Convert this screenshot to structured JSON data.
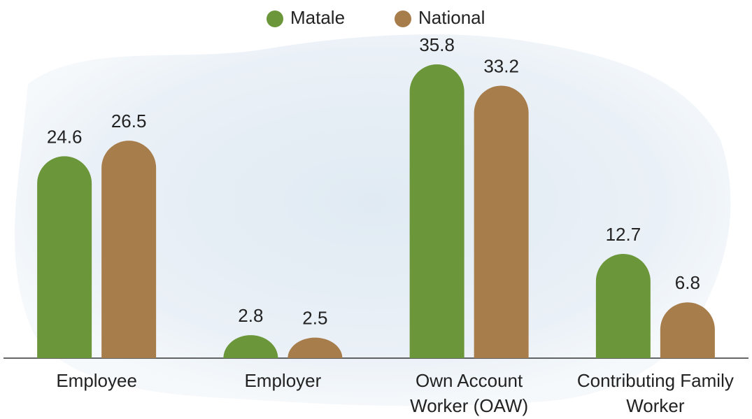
{
  "chart_data": {
    "type": "bar",
    "categories": [
      "Employee",
      "Employer",
      "Own Account\nWorker (OAW)",
      "Contributing Family\nWorker"
    ],
    "series": [
      {
        "name": "Matale",
        "color": "#6b963a",
        "values": [
          24.6,
          2.8,
          35.8,
          12.7
        ]
      },
      {
        "name": "National",
        "color": "#a87d4c",
        "values": [
          26.5,
          2.5,
          33.2,
          6.8
        ]
      }
    ],
    "legend": "top"
  }
}
